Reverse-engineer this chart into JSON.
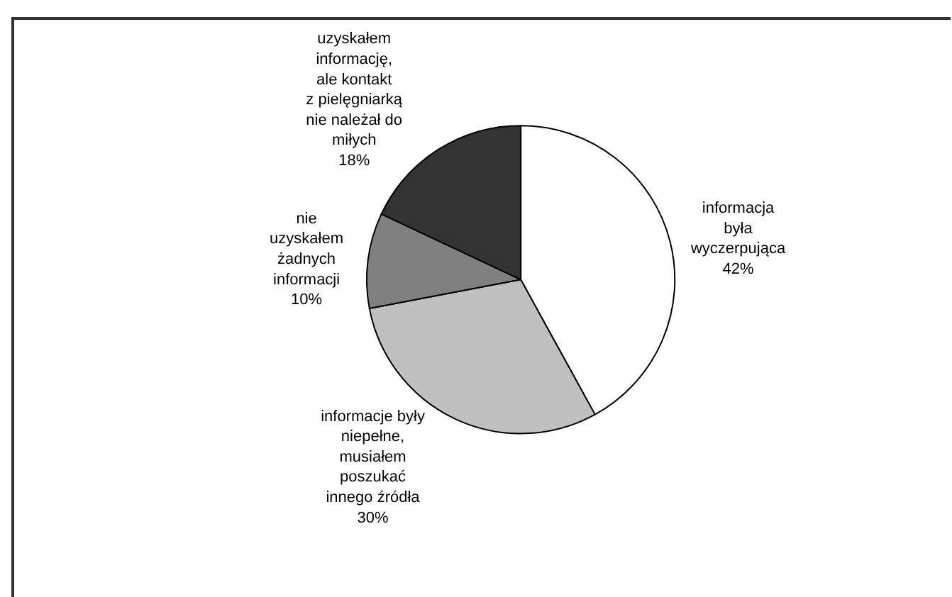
{
  "chart_data": {
    "type": "pie",
    "categories": [
      "informacja\nbyła\nwyczerpująca",
      "informacje były\nniepełne,\nmusiałem\nposzukać\ninnego źródła",
      "nie\nuzyskałem\nżadnych\ninformacji",
      "uzyskałem\ninformację,\nale kontakt\nz pielęgniarką\nnie należał do\nmiłych"
    ],
    "values": [
      42,
      30,
      10,
      18
    ],
    "value_labels": [
      "42%",
      "30%",
      "10%",
      "18%"
    ],
    "colors": [
      "#ffffff",
      "#c0c0c0",
      "#808080",
      "#333333"
    ],
    "legend": false
  }
}
